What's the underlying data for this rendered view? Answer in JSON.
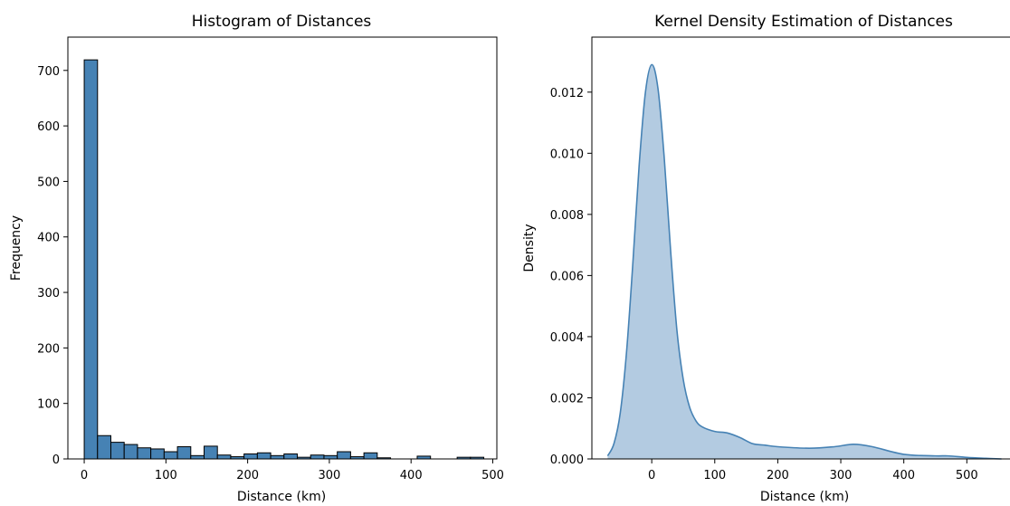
{
  "chart_data": [
    {
      "type": "bar",
      "title": "Histogram of Distances",
      "xlabel": "Distance (km)",
      "ylabel": "Frequency",
      "xlim": [
        -20,
        505
      ],
      "ylim": [
        0,
        760
      ],
      "xticks": [
        0,
        100,
        200,
        300,
        400,
        500
      ],
      "yticks": [
        0,
        100,
        200,
        300,
        400,
        500,
        600,
        700
      ],
      "bin_edges": [
        0,
        16.3,
        32.6,
        48.9,
        65.2,
        81.5,
        97.8,
        114.1,
        130.4,
        146.7,
        163,
        179.3,
        195.6,
        211.9,
        228.2,
        244.5,
        260.8,
        277.1,
        293.4,
        309.7,
        326,
        342.3,
        358.6,
        374.9,
        391.2,
        407.5,
        423.8,
        440.1,
        456.4,
        472.7,
        489
      ],
      "values": [
        719,
        42,
        30,
        26,
        20,
        18,
        13,
        22,
        6,
        23,
        7,
        4,
        9,
        11,
        6,
        9,
        3,
        7,
        6,
        13,
        4,
        11,
        2,
        0,
        0,
        5,
        0,
        0,
        3,
        3
      ],
      "bar_color": "#4682b4",
      "grid": false
    },
    {
      "type": "area",
      "title": "Kernel Density Estimation of Distances",
      "xlabel": "Distance (km)",
      "ylabel": "Density",
      "xlim": [
        -95,
        580
      ],
      "ylim": [
        0,
        0.0138
      ],
      "xticks": [
        0,
        100,
        200,
        300,
        400,
        500
      ],
      "yticks": [
        0.0,
        0.002,
        0.004,
        0.006,
        0.008,
        0.01,
        0.012
      ],
      "x": [
        -70,
        -60,
        -50,
        -40,
        -30,
        -20,
        -10,
        0,
        10,
        20,
        30,
        40,
        50,
        60,
        70,
        80,
        100,
        120,
        140,
        160,
        180,
        200,
        250,
        290,
        320,
        350,
        400,
        450,
        470,
        500,
        530,
        555
      ],
      "y": [
        0.0001,
        0.0005,
        0.0015,
        0.0035,
        0.0064,
        0.0096,
        0.012,
        0.0129,
        0.0121,
        0.0098,
        0.0068,
        0.0042,
        0.0026,
        0.0017,
        0.00125,
        0.00105,
        0.0009,
        0.00085,
        0.0007,
        0.0005,
        0.00045,
        0.0004,
        0.00035,
        0.0004,
        0.00048,
        0.0004,
        0.00015,
        0.0001,
        0.0001,
        5e-05,
        2e-05,
        0.0
      ],
      "line_color": "#4682b4",
      "fill_color": "#b3cbe1",
      "grid": false
    }
  ]
}
